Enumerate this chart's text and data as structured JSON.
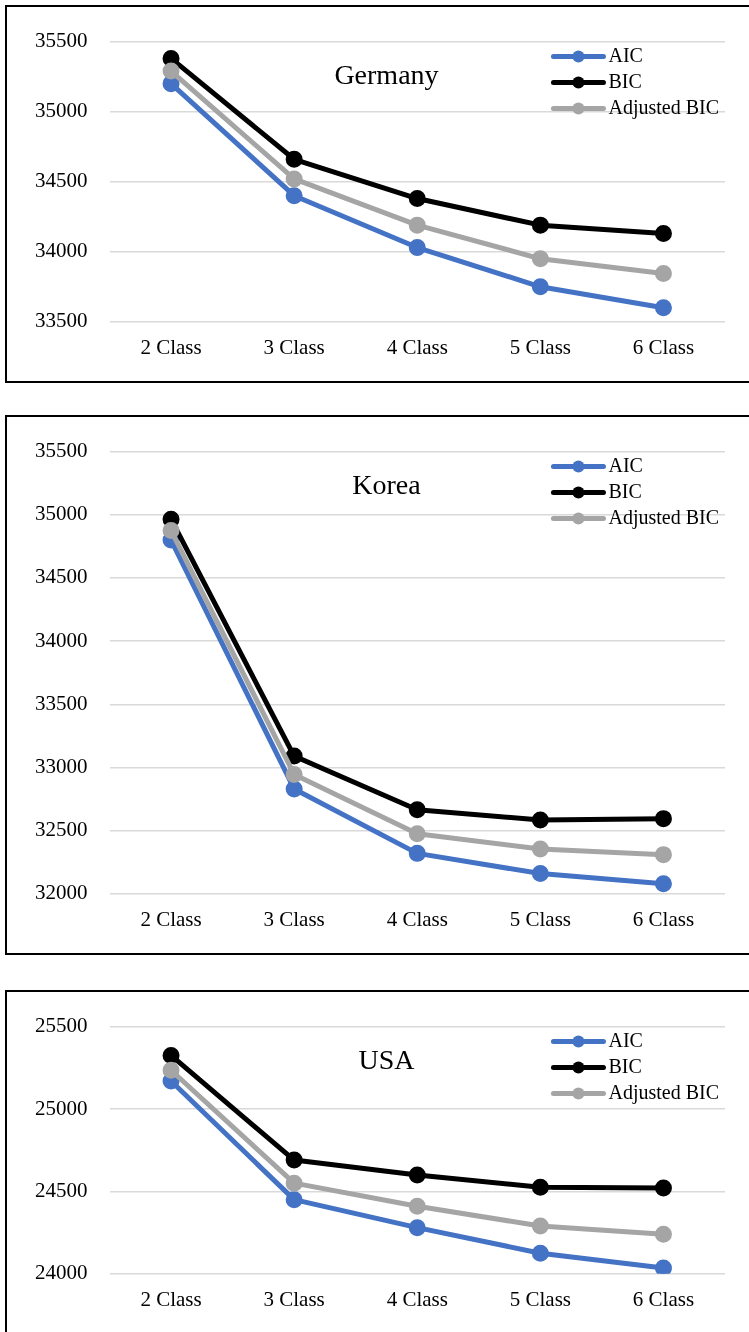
{
  "chart_data": [
    {
      "type": "line",
      "title": "Germany",
      "categories": [
        "2 Class",
        "3 Class",
        "4 Class",
        "5 Class",
        "6 Class"
      ],
      "series": [
        {
          "name": "AIC",
          "color": "#4472c4",
          "values": [
            35200,
            34400,
            34030,
            33750,
            33600
          ]
        },
        {
          "name": "BIC",
          "color": "#000000",
          "values": [
            35380,
            34660,
            34380,
            34190,
            34130
          ]
        },
        {
          "name": "Adjusted BIC",
          "color": "#a5a5a5",
          "values": [
            35290,
            34520,
            34190,
            33950,
            33845
          ]
        }
      ],
      "ylim": [
        33500,
        35500
      ],
      "yticks": [
        33500,
        34000,
        34500,
        35000,
        35500
      ],
      "grid": "y",
      "legend": "top right",
      "marker": "circle",
      "line_style": "solid"
    },
    {
      "type": "line",
      "title": "Korea",
      "categories": [
        "2 Class",
        "3 Class",
        "4 Class",
        "5 Class",
        "6 Class"
      ],
      "series": [
        {
          "name": "AIC",
          "color": "#4472c4",
          "values": [
            34800,
            32830,
            32320,
            32160,
            32080
          ]
        },
        {
          "name": "BIC",
          "color": "#000000",
          "values": [
            34965,
            33090,
            32665,
            32585,
            32595
          ]
        },
        {
          "name": "Adjusted BIC",
          "color": "#a5a5a5",
          "values": [
            34875,
            32945,
            32475,
            32355,
            32310
          ]
        }
      ],
      "ylim": [
        32000,
        35500
      ],
      "yticks": [
        32000,
        32500,
        33000,
        33500,
        34000,
        34500,
        35000,
        35500
      ],
      "grid": "y",
      "legend": "top right",
      "marker": "circle",
      "line_style": "solid"
    },
    {
      "type": "line",
      "title": "USA",
      "categories": [
        "2 Class",
        "3 Class",
        "4 Class",
        "5 Class",
        "6 Class"
      ],
      "series": [
        {
          "name": "AIC",
          "color": "#4472c4",
          "values": [
            25170,
            24450,
            24280,
            24125,
            24035
          ]
        },
        {
          "name": "BIC",
          "color": "#000000",
          "values": [
            25325,
            24690,
            24600,
            24525,
            24520
          ]
        },
        {
          "name": "Adjusted BIC",
          "color": "#a5a5a5",
          "values": [
            25235,
            24550,
            24410,
            24290,
            24240
          ]
        }
      ],
      "ylim": [
        24000,
        25500
      ],
      "yticks": [
        24000,
        24500,
        25000,
        25500
      ],
      "grid": "y",
      "legend": "top right",
      "marker": "circle",
      "line_style": "solid"
    }
  ]
}
